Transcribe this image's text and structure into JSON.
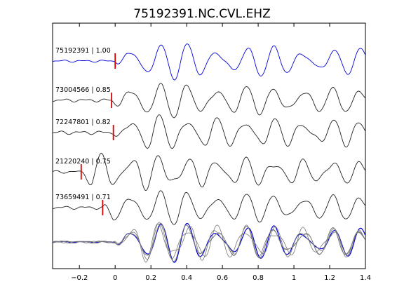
{
  "chart_data": {
    "type": "line",
    "title": "75192391.NC.CVL.EHZ",
    "xlabel": "",
    "ylabel": "",
    "xlim": [
      -0.35,
      1.4
    ],
    "xticks": [
      -0.2,
      0,
      0.2,
      0.4,
      0.6,
      0.8,
      1,
      1.2,
      1.4
    ],
    "xtick_labels": [
      "−0.2",
      "0",
      "0.2",
      "0.4",
      "0.6",
      "0.8",
      "1",
      "1.2",
      "1.4"
    ],
    "grid": false,
    "traces": [
      {
        "label": "75192391 | 1.00",
        "pick_time": 0.0,
        "color": "#0000dd",
        "seed": 11,
        "noise_amp": 0.05
      },
      {
        "label": "73004566 | 0.85",
        "pick_time": -0.02,
        "color": "#222222",
        "seed": 23,
        "noise_amp": 0.07
      },
      {
        "label": "72247801 | 0.82",
        "pick_time": -0.01,
        "color": "#222222",
        "seed": 37,
        "noise_amp": 0.08
      },
      {
        "label": "21220240 | 0.75",
        "pick_time": -0.19,
        "color": "#222222",
        "seed": 51,
        "noise_amp": 0.06
      },
      {
        "label": "73659491 | 0.71",
        "pick_time": -0.07,
        "color": "#222222",
        "seed": 67,
        "noise_amp": 0.07
      }
    ],
    "stack": {
      "line_colors": [
        "#777777",
        "#777777",
        "#777777",
        "#777777",
        "#777777"
      ],
      "highlight_color": "#0000dd"
    },
    "pick_color": "#e00000"
  }
}
